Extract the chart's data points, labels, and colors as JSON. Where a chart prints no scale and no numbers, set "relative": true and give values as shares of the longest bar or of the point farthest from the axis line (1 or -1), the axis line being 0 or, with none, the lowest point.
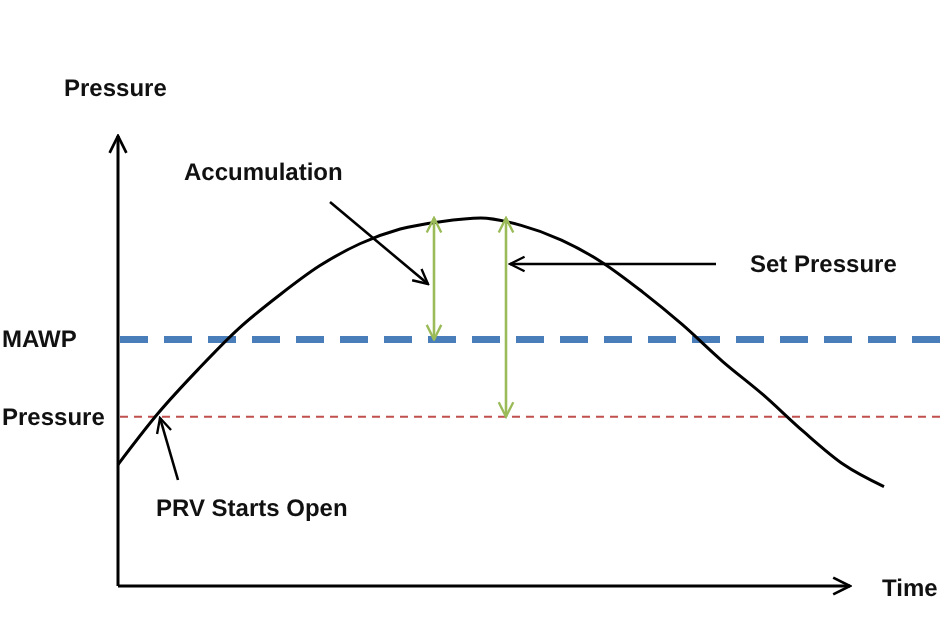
{
  "chart_data": {
    "type": "line",
    "relative": true,
    "xlabel": "Time",
    "ylabel": "Pressure",
    "categories": [
      null,
      null,
      null,
      null,
      null,
      null,
      null,
      null,
      null,
      null,
      null,
      null,
      null,
      null,
      null,
      null,
      null,
      null,
      null,
      null
    ],
    "series": [
      {
        "color": "#000000",
        "values": [
          0.33,
          0.47,
          0.59,
          0.7,
          0.79,
          0.87,
          0.93,
          0.97,
          0.99,
          1,
          0.98,
          0.94,
          0.88,
          0.8,
          0.71,
          0.61,
          0.52,
          0.42,
          0.33,
          0.27
        ]
      }
    ],
    "ref_lines": [
      {
        "axis": "y",
        "value": 0.67,
        "label": "MAWP",
        "color": "#4a7ebb",
        "line_style": "dashed"
      },
      {
        "axis": "y",
        "value": 0.46,
        "label": "Pressure",
        "color": "#c0504d",
        "line_style": "dotted"
      }
    ],
    "annotations": [
      "Accumulation",
      "Set Pressure",
      "PRV Starts Open"
    ],
    "marker": "none",
    "line_style": "solid"
  }
}
